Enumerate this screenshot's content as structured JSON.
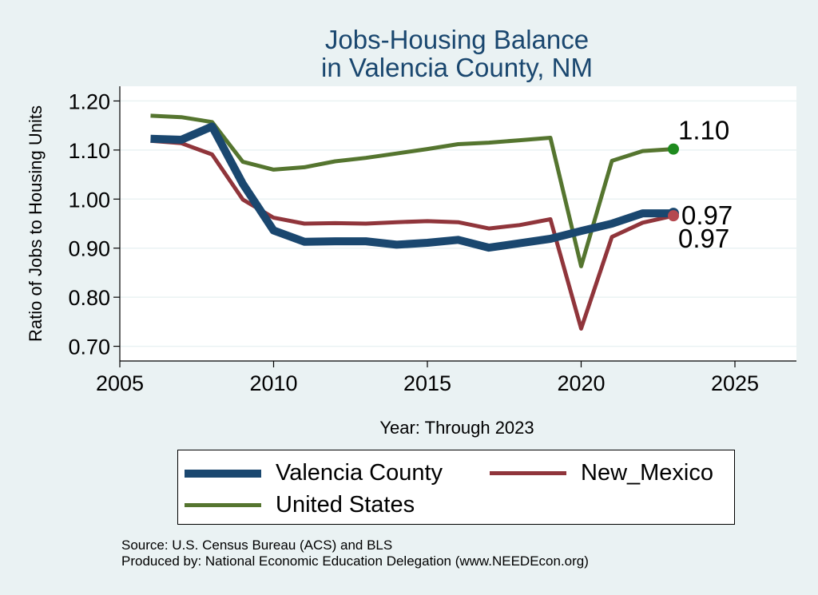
{
  "title": [
    "Jobs-Housing Balance",
    "in Valencia County, NM"
  ],
  "xlabel": "Year: Through 2023",
  "ylabel": "Ratio of Jobs to Housing Units",
  "footer": [
    "Source: U.S. Census Bureau (ACS) and BLS",
    "Produced by: National Economic Education Delegation (www.NEEDEcon.org)"
  ],
  "legend": [
    "Valencia County",
    "New_Mexico",
    "United States"
  ],
  "chart_data": {
    "type": "line",
    "title": "Jobs-Housing Balance in Valencia County, NM",
    "xlabel": "Year: Through 2023",
    "ylabel": "Ratio of Jobs to Housing Units",
    "xlim": [
      2005,
      2027
    ],
    "ylim": [
      0.67,
      1.23
    ],
    "xticks": [
      2005,
      2010,
      2015,
      2020,
      2025
    ],
    "yticks": [
      0.7,
      0.8,
      0.9,
      1.0,
      1.1,
      1.2
    ],
    "ytick_labels": [
      "0.70",
      "0.80",
      "0.90",
      "1.00",
      "1.10",
      "1.20"
    ],
    "grid": true,
    "legend_position": "bottom",
    "x": [
      2006,
      2007,
      2008,
      2009,
      2010,
      2011,
      2012,
      2013,
      2014,
      2015,
      2016,
      2017,
      2018,
      2019,
      2020,
      2021,
      2022,
      2023
    ],
    "series": [
      {
        "name": "Valencia County",
        "color": "#1a476f",
        "width": "thick",
        "values": [
          1.123,
          1.121,
          1.148,
          1.031,
          0.936,
          0.913,
          0.914,
          0.914,
          0.907,
          0.911,
          0.917,
          0.901,
          0.91,
          0.919,
          0.935,
          0.95,
          0.971,
          0.971
        ],
        "end_label": "0.97"
      },
      {
        "name": "New_Mexico",
        "color": "#90353b",
        "width": "normal",
        "values": [
          1.119,
          1.114,
          1.091,
          0.999,
          0.962,
          0.95,
          0.951,
          0.95,
          0.953,
          0.955,
          0.953,
          0.94,
          0.947,
          0.959,
          0.736,
          0.923,
          0.952,
          0.966
        ],
        "end_label": "0.97"
      },
      {
        "name": "United States",
        "color": "#55752f",
        "width": "normal",
        "values": [
          1.17,
          1.167,
          1.157,
          1.076,
          1.06,
          1.065,
          1.077,
          1.084,
          1.093,
          1.102,
          1.112,
          1.115,
          1.12,
          1.125,
          0.863,
          1.078,
          1.098,
          1.102
        ],
        "end_label": "1.10"
      }
    ]
  }
}
